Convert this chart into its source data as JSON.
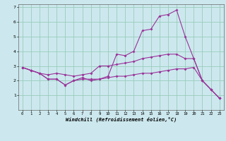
{
  "xlabel": "Windchill (Refroidissement éolien,°C)",
  "bg_color": "#cce8ee",
  "grid_color": "#99ccbb",
  "line_color": "#993399",
  "xlim": [
    -0.5,
    23.5
  ],
  "ylim": [
    0,
    7.2
  ],
  "xticks": [
    0,
    1,
    2,
    3,
    4,
    5,
    6,
    7,
    8,
    9,
    10,
    11,
    12,
    13,
    14,
    15,
    16,
    17,
    18,
    19,
    20,
    21,
    22,
    23
  ],
  "yticks": [
    1,
    2,
    3,
    4,
    5,
    6,
    7
  ],
  "series": {
    "line1_x": [
      0,
      1,
      2,
      3,
      4,
      5,
      6,
      7,
      8,
      9,
      10,
      11,
      12,
      13,
      14,
      15,
      16,
      17,
      18,
      19,
      20,
      21,
      22,
      23
    ],
    "line1_y": [
      2.9,
      2.7,
      2.5,
      2.1,
      2.1,
      1.7,
      2.0,
      2.1,
      2.1,
      2.1,
      2.2,
      2.3,
      2.3,
      2.4,
      2.5,
      2.5,
      2.6,
      2.7,
      2.8,
      2.8,
      2.9,
      2.0,
      1.4,
      0.8
    ],
    "line2_x": [
      0,
      1,
      2,
      3,
      4,
      5,
      6,
      7,
      8,
      9,
      10,
      11,
      12,
      13,
      14,
      15,
      16,
      17,
      18,
      19,
      20,
      21,
      22,
      23
    ],
    "line2_y": [
      2.9,
      2.7,
      2.5,
      2.1,
      2.1,
      1.7,
      2.0,
      2.2,
      2.0,
      2.1,
      2.3,
      3.8,
      3.7,
      4.0,
      5.4,
      5.5,
      6.4,
      6.5,
      6.8,
      5.0,
      3.5,
      2.0,
      1.4,
      0.8
    ],
    "line3_x": [
      0,
      1,
      2,
      3,
      4,
      5,
      6,
      7,
      8,
      9,
      10,
      11,
      12,
      13,
      14,
      15,
      16,
      17,
      18,
      19,
      20,
      21,
      22,
      23
    ],
    "line3_y": [
      2.9,
      2.7,
      2.5,
      2.4,
      2.5,
      2.4,
      2.3,
      2.4,
      2.5,
      3.0,
      3.0,
      3.1,
      3.2,
      3.3,
      3.5,
      3.6,
      3.7,
      3.8,
      3.8,
      3.5,
      3.5,
      2.0,
      1.4,
      0.8
    ]
  }
}
